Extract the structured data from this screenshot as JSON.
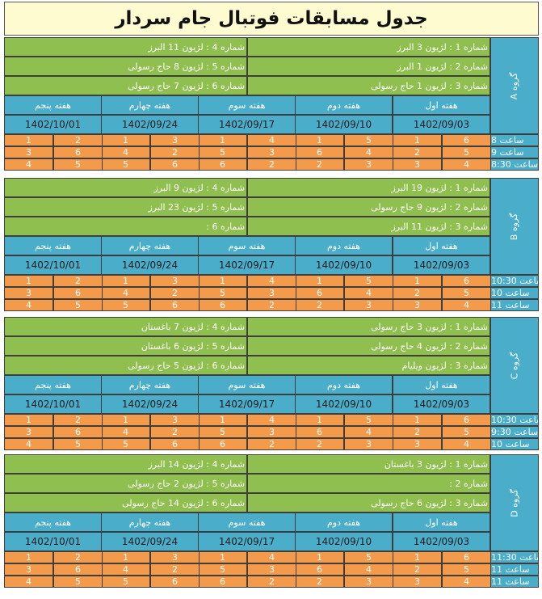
{
  "title": "جدول مسابقات فوتبال جام سردار",
  "colors": {
    "team_rows": "#8fbf4e",
    "headers": "#4aaecb",
    "numbers": "#f39a4b",
    "title_bg": "#fffbd0"
  },
  "weeks": [
    "هفته اول",
    "هفته دوم",
    "هفته سوم",
    "هفته چهارم",
    "هفته پنجم"
  ],
  "dates": [
    "1402/09/03",
    "1402/09/10",
    "1402/09/17",
    "1402/09/24",
    "1402/10/01"
  ],
  "groups": [
    {
      "label": "گروه A",
      "teams_right": [
        "شماره 1 : لژیون 3 البرز",
        "شماره 2 : لژیون 1 البرز",
        "شماره 3 : لژیون 1 حاج رسولی"
      ],
      "teams_left": [
        "شماره 4 : لژیون 11 البرز",
        "شماره 5 : لژیون 8 حاج رسولی",
        "شماره 6 : لژیون 7 حاج رسولی"
      ],
      "matches": [
        {
          "time": "ساعت 8",
          "pairs": [
            [
              "6",
              "1"
            ],
            [
              "5",
              "1"
            ],
            [
              "4",
              "1"
            ],
            [
              "3",
              "1"
            ],
            [
              "2",
              "1"
            ]
          ]
        },
        {
          "time": "ساعت 9",
          "pairs": [
            [
              "5",
              "2"
            ],
            [
              "4",
              "6"
            ],
            [
              "3",
              "5"
            ],
            [
              "2",
              "4"
            ],
            [
              "6",
              "3"
            ]
          ]
        },
        {
          "time": "ساعت 8:30",
          "pairs": [
            [
              "4",
              "3"
            ],
            [
              "3",
              "2"
            ],
            [
              "2",
              "6"
            ],
            [
              "6",
              "5"
            ],
            [
              "5",
              "4"
            ]
          ]
        }
      ]
    },
    {
      "label": "گروه B",
      "teams_right": [
        "شماره 1 : لژیون 19 البرز",
        "شماره 2 : لژیون 9 حاج رسولی",
        "شماره 3 : لژیون 11 البرز"
      ],
      "teams_left": [
        "شماره 4 : لژیون 9 البرز",
        "شماره 5 : لژیون 23 البرز",
        "شماره 6 :"
      ],
      "matches": [
        {
          "time": "ساعت 10:30",
          "pairs": [
            [
              "6",
              "1"
            ],
            [
              "5",
              "1"
            ],
            [
              "4",
              "1"
            ],
            [
              "3",
              "1"
            ],
            [
              "2",
              "1"
            ]
          ]
        },
        {
          "time": "ساعت 10",
          "pairs": [
            [
              "5",
              "2"
            ],
            [
              "4",
              "6"
            ],
            [
              "3",
              "5"
            ],
            [
              "2",
              "4"
            ],
            [
              "6",
              "3"
            ]
          ]
        },
        {
          "time": "ساعت 11",
          "pairs": [
            [
              "4",
              "3"
            ],
            [
              "3",
              "2"
            ],
            [
              "2",
              "6"
            ],
            [
              "6",
              "5"
            ],
            [
              "5",
              "4"
            ]
          ]
        }
      ]
    },
    {
      "label": "گروه C",
      "teams_right": [
        "شماره 1 : لژیون 3 حاج رسولی",
        "شماره 2 : لژیون 4 حاج رسولی",
        "شماره 3 : لژیون ویلیام"
      ],
      "teams_left": [
        "شماره 4 : لژیون 7 باغستان",
        "شماره 5 : لژیون 6 باغستان",
        "شماره 6 : لژیون 5 حاج رسولی"
      ],
      "matches": [
        {
          "time": "ساعت 10:30",
          "pairs": [
            [
              "6",
              "1"
            ],
            [
              "5",
              "1"
            ],
            [
              "4",
              "1"
            ],
            [
              "3",
              "1"
            ],
            [
              "2",
              "1"
            ]
          ]
        },
        {
          "time": "ساعت 9:30",
          "pairs": [
            [
              "5",
              "2"
            ],
            [
              "4",
              "6"
            ],
            [
              "3",
              "5"
            ],
            [
              "2",
              "4"
            ],
            [
              "6",
              "3"
            ]
          ]
        },
        {
          "time": "ساعت 10",
          "pairs": [
            [
              "4",
              "3"
            ],
            [
              "3",
              "2"
            ],
            [
              "2",
              "6"
            ],
            [
              "6",
              "5"
            ],
            [
              "5",
              "4"
            ]
          ]
        }
      ]
    },
    {
      "label": "گروه D",
      "teams_right": [
        "شماره 1 : لژیون 3 باغستان",
        "شماره 2 :",
        "شماره 3 : لژیون 6 حاج رسولی"
      ],
      "teams_left": [
        "شماره 4 : لژیون 14 البرز",
        "شماره 5 : لژیون 2 حاج رسولی",
        "شماره 6 : لژیون 14 حاج رسولی"
      ],
      "matches": [
        {
          "time": "ساعت 11:30",
          "pairs": [
            [
              "6",
              "1"
            ],
            [
              "5",
              "1"
            ],
            [
              "4",
              "1"
            ],
            [
              "3",
              "1"
            ],
            [
              "2",
              "1"
            ]
          ]
        },
        {
          "time": "ساعت 11",
          "pairs": [
            [
              "5",
              "2"
            ],
            [
              "4",
              "6"
            ],
            [
              "3",
              "5"
            ],
            [
              "2",
              "4"
            ],
            [
              "6",
              "3"
            ]
          ]
        },
        {
          "time": "ساعت 11",
          "pairs": [
            [
              "4",
              "3"
            ],
            [
              "3",
              "2"
            ],
            [
              "2",
              "6"
            ],
            [
              "6",
              "5"
            ],
            [
              "5",
              "4"
            ]
          ]
        }
      ]
    }
  ]
}
